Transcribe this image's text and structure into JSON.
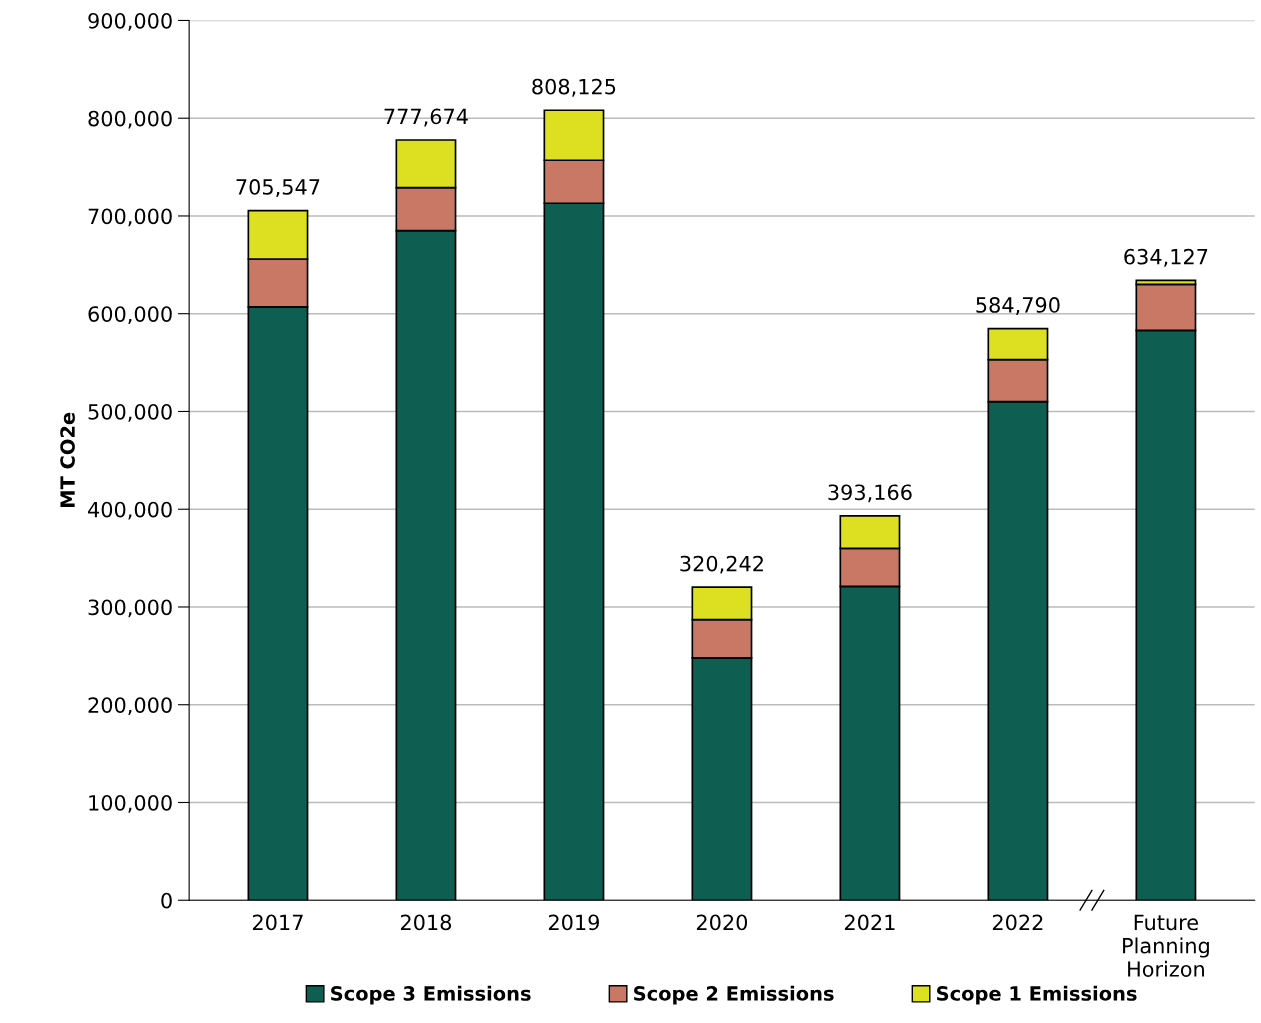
{
  "chart_data": {
    "type": "bar",
    "stacked": true,
    "ylabel": "MT CO2e",
    "categories": [
      "2017",
      "2018",
      "2019",
      "2020",
      "2021",
      "2022",
      "Future\nPlanning\nHorizon"
    ],
    "series": [
      {
        "name": "Scope 3 Emissions",
        "color": "#0f5e52",
        "values": [
          607000,
          685000,
          713000,
          248000,
          321000,
          510000,
          583000
        ]
      },
      {
        "name": "Scope 2 Emissions",
        "color": "#c87865",
        "values": [
          49000,
          44000,
          44000,
          39000,
          39000,
          43000,
          47000
        ]
      },
      {
        "name": "Scope 1 Emissions",
        "color": "#dce020",
        "values": [
          49547,
          48674,
          51125,
          33242,
          33166,
          31790,
          4127
        ]
      }
    ],
    "totals": [
      "705,547",
      "777,674",
      "808,125",
      "320,242",
      "393,166",
      "584,790",
      "634,127"
    ],
    "ylim": [
      0,
      900000
    ],
    "yticks": [
      {
        "value": 0,
        "label": "0"
      },
      {
        "value": 100000,
        "label": "100,000"
      },
      {
        "value": 200000,
        "label": "200,000"
      },
      {
        "value": 300000,
        "label": "300,000"
      },
      {
        "value": 400000,
        "label": "400,000"
      },
      {
        "value": 500000,
        "label": "500,000"
      },
      {
        "value": 600000,
        "label": "600,000"
      },
      {
        "value": 700000,
        "label": "700,000"
      },
      {
        "value": 800000,
        "label": "800,000"
      },
      {
        "value": 900000,
        "label": "900,000"
      }
    ],
    "grid": "y",
    "legend": "bottom"
  }
}
